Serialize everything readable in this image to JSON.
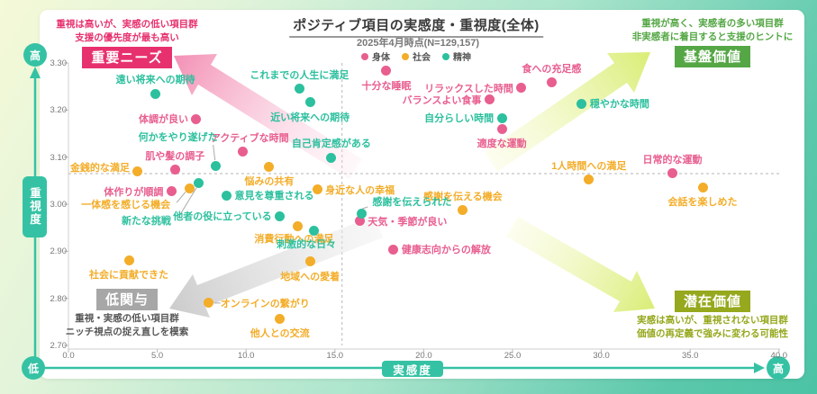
{
  "title": "ポジティブ項目の実感度・重視度(全体)",
  "subtitle": "2025年4月時点(N=129,157)",
  "legend": [
    {
      "label": "身体",
      "color": "#e85e8f"
    },
    {
      "label": "社会",
      "color": "#f3ad29"
    },
    {
      "label": "精神",
      "color": "#2cc09e"
    }
  ],
  "axes": {
    "x": {
      "label": "実感度",
      "low": "低",
      "high": "高",
      "ticks": [
        "0.0",
        "5.0",
        "10.0",
        "15.0",
        "20.0",
        "25.0",
        "30.0",
        "35.0",
        "40.0"
      ]
    },
    "y": {
      "label": "重視度",
      "low": "低",
      "high": "高",
      "ticks": [
        "3.30",
        "3.20",
        "3.10",
        "3.00",
        "2.90",
        "2.80",
        "2.70"
      ]
    },
    "reference_lines": {
      "x": 15.4,
      "y": 3.065
    }
  },
  "quadrants": {
    "top_left": {
      "badge": "重要ニーズ",
      "badge_color": "#e7316f",
      "text_color": "#e7316f",
      "lines": [
        "重視は高いが、実感の低い項目群",
        "支援の優先度が最も高い"
      ]
    },
    "top_right": {
      "badge": "基盤価値",
      "badge_color": "#55a746",
      "text_color": "#55a746",
      "lines": [
        "重視が高く、実感者の多い項目群",
        "非実感者に着目すると支援のヒントに"
      ]
    },
    "bottom_left": {
      "badge": "低関与",
      "badge_color": "#a7a7a7",
      "text_color": "#565656",
      "lines": [
        "重視・実感の低い項目群",
        "ニッチ視点の捉え直しを模索"
      ]
    },
    "bottom_right": {
      "badge": "潜在価値",
      "badge_color": "#96a81d",
      "text_color": "#96a81d",
      "lines": [
        "実感は高いが、重視されない項目群",
        "価値の再定義で強みに変わる可能性"
      ]
    }
  },
  "chart_data": {
    "type": "scatter",
    "title": "ポジティブ項目の実感度・重視度(全体)",
    "xlabel": "実感度",
    "ylabel": "重視度",
    "xlim": [
      0,
      40
    ],
    "ylim": [
      2.7,
      3.3
    ],
    "grid": false,
    "legend_position": "top-center",
    "series": [
      {
        "name": "身体",
        "color": "#e85e8f",
        "points": [
          {
            "label": "十分な睡眠",
            "x": 17.9,
            "y": 3.283,
            "pos": "bottom"
          },
          {
            "label": "リラックスした時間",
            "x": 25.5,
            "y": 3.247,
            "pos": "left"
          },
          {
            "label": "食への充足感",
            "x": 27.2,
            "y": 3.258,
            "pos": "top"
          },
          {
            "label": "バランスよい食事",
            "x": 23.7,
            "y": 3.222,
            "pos": "left"
          },
          {
            "label": "体調が良い",
            "x": 7.2,
            "y": 3.181,
            "pos": "left"
          },
          {
            "label": "適度な運動",
            "x": 24.4,
            "y": 3.16,
            "pos": "bottom"
          },
          {
            "label": "アクティブな時間",
            "x": 9.8,
            "y": 3.111,
            "pos": "top",
            "dx": 8
          },
          {
            "label": "肌や髪の調子",
            "x": 6.0,
            "y": 3.073,
            "pos": "top"
          },
          {
            "label": "体作りが順調",
            "x": 5.8,
            "y": 3.027,
            "pos": "left"
          },
          {
            "label": "天気・季節が良い",
            "x": 16.4,
            "y": 2.964,
            "pos": "right"
          },
          {
            "label": "健康志向からの解放",
            "x": 18.3,
            "y": 2.904,
            "pos": "right"
          },
          {
            "label": "日常的な運動",
            "x": 34.0,
            "y": 3.065,
            "pos": "top"
          }
        ]
      },
      {
        "name": "社会",
        "color": "#f3ad29",
        "points": [
          {
            "label": "金銭的な満足",
            "x": 3.9,
            "y": 3.069,
            "pos": "left",
            "dy": -5
          },
          {
            "label": "悩みの共有",
            "x": 11.3,
            "y": 3.08,
            "pos": "bottom"
          },
          {
            "label": "一体感を感じる機会",
            "x": 6.8,
            "y": 3.034,
            "pos": "left",
            "dx": -12,
            "dy": 18,
            "conn": [
              [
                -14,
                16
              ],
              [
                -4,
                4
              ]
            ]
          },
          {
            "label": "身近な人の幸福",
            "x": 14.0,
            "y": 3.031,
            "pos": "right"
          },
          {
            "label": "感謝を伝える機会",
            "x": 22.2,
            "y": 2.987,
            "pos": "top"
          },
          {
            "label": "消費行動への満足",
            "x": 12.9,
            "y": 2.954,
            "pos": "bottom",
            "dx": -4,
            "dy": -2
          },
          {
            "label": "地域への愛着",
            "x": 13.6,
            "y": 2.878,
            "pos": "bottom"
          },
          {
            "label": "社会に貢献できた",
            "x": 3.4,
            "y": 2.881,
            "pos": "bottom"
          },
          {
            "label": "オンラインの繋がり",
            "x": 7.9,
            "y": 2.79,
            "pos": "right",
            "dx": 4,
            "conn": [
              [
                13,
                0
              ],
              [
                6,
                0
              ]
            ]
          },
          {
            "label": "他人との交流",
            "x": 11.9,
            "y": 2.757,
            "pos": "bottom"
          },
          {
            "label": "1人時間への満足",
            "x": 29.3,
            "y": 3.052,
            "pos": "top"
          },
          {
            "label": "会話を楽しめた",
            "x": 35.7,
            "y": 3.036,
            "pos": "bottom"
          }
        ]
      },
      {
        "name": "精神",
        "color": "#2cc09e",
        "points": [
          {
            "label": "遠い将来への期待",
            "x": 4.9,
            "y": 3.235,
            "pos": "top"
          },
          {
            "label": "これまでの人生に満足",
            "x": 13.0,
            "y": 3.245,
            "pos": "top"
          },
          {
            "label": "近い将来への期待",
            "x": 13.6,
            "y": 3.216,
            "pos": "bottom"
          },
          {
            "label": "穏やかな時間",
            "x": 28.9,
            "y": 3.214,
            "pos": "right"
          },
          {
            "label": "自分らしい時間",
            "x": 24.4,
            "y": 3.183,
            "pos": "left"
          },
          {
            "label": "自己肯定感がある",
            "x": 14.8,
            "y": 3.099,
            "pos": "top"
          },
          {
            "label": "何かをやり遂げた",
            "x": 8.3,
            "y": 3.082,
            "pos": "top-left",
            "conn": [
              [
                -3,
                -23
              ],
              [
                -1,
                -6
              ]
            ]
          },
          {
            "label": "新たな挑戦",
            "x": 7.35,
            "y": 3.044,
            "pos": "left",
            "dx": -22,
            "dy": 41,
            "conn": [
              [
                -23,
                38
              ],
              [
                -3,
                5
              ]
            ]
          },
          {
            "label": "意見を尊重される",
            "x": 8.9,
            "y": 3.019,
            "pos": "right"
          },
          {
            "label": "他者の役に立っている",
            "x": 11.9,
            "y": 2.975,
            "pos": "left"
          },
          {
            "label": "感謝を伝えられた",
            "x": 16.5,
            "y": 2.979,
            "pos": "top-right",
            "dx": 4,
            "conn": [
              [
                7,
                -8
              ],
              [
                1,
                -6
              ]
            ]
          },
          {
            "label": "刺激的な日々",
            "x": 13.8,
            "y": 2.943,
            "pos": "bottom",
            "dx": -8,
            "dy": -2
          }
        ]
      }
    ]
  }
}
